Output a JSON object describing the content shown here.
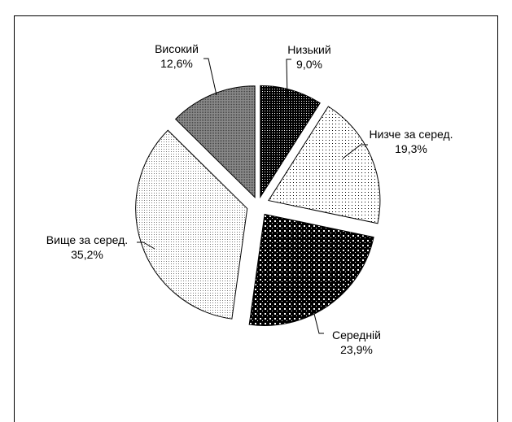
{
  "chart_data": {
    "type": "pie",
    "title": "",
    "exploded": true,
    "start_angle_deg": 0,
    "direction": "clockwise",
    "decimal_separator": ",",
    "slices": [
      {
        "name": "Низький",
        "value": 9.0,
        "label_value": "9,0%",
        "fill": "dense-black-dots"
      },
      {
        "name": "Низче за серед.",
        "value": 19.3,
        "label_value": "19,3%",
        "fill": "sparse-dots"
      },
      {
        "name": "Середній",
        "value": 23.9,
        "label_value": "23,9%",
        "fill": "black-white-grid"
      },
      {
        "name": "Вище за серед.",
        "value": 35.2,
        "label_value": "35,2%",
        "fill": "fine-dots"
      },
      {
        "name": "Високий",
        "value": 12.6,
        "label_value": "12,6%",
        "fill": "gray-dots"
      }
    ]
  }
}
